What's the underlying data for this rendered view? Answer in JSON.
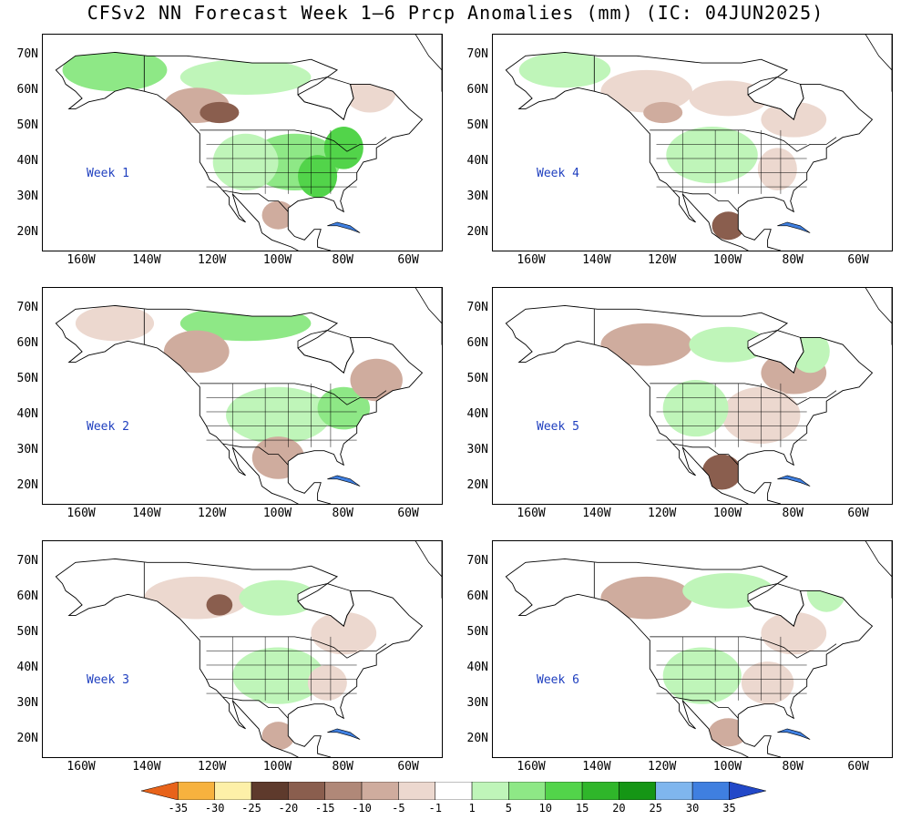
{
  "title": "CFSv2 NN Forecast Week 1–6 Prcp Anomalies (mm) (IC: 04JUN2025)",
  "lat_labels": [
    "70N",
    "60N",
    "50N",
    "40N",
    "30N",
    "20N"
  ],
  "lon_labels": [
    "160W",
    "140W",
    "120W",
    "100W",
    "80W",
    "60W"
  ],
  "panels": [
    {
      "label": "Week 1"
    },
    {
      "label": "Week 4"
    },
    {
      "label": "Week 2"
    },
    {
      "label": "Week 5"
    },
    {
      "label": "Week 3"
    },
    {
      "label": "Week 6"
    }
  ],
  "colorbar": {
    "ticks": [
      "-35",
      "-30",
      "-25",
      "-20",
      "-15",
      "-10",
      "-5",
      "-1",
      "1",
      "5",
      "10",
      "15",
      "20",
      "25",
      "30",
      "35"
    ],
    "colors": [
      "#e8631a",
      "#f7b23e",
      "#fdf0a8",
      "#5e3a2c",
      "#8a5e4e",
      "#b08878",
      "#cfac9e",
      "#ecd8cf",
      "#ffffff",
      "#bff5b9",
      "#8ee886",
      "#52d44a",
      "#2fb62a",
      "#159615",
      "#7fb6ee",
      "#3f7fe0",
      "#2248c8"
    ]
  },
  "colors": {
    "wet_light": "#bff5b9",
    "wet_mid": "#8ee886",
    "wet_strong": "#52d44a",
    "dry_light": "#ecd8cf",
    "dry_mid": "#cfac9e",
    "dry_strong": "#8a5e4e"
  }
}
